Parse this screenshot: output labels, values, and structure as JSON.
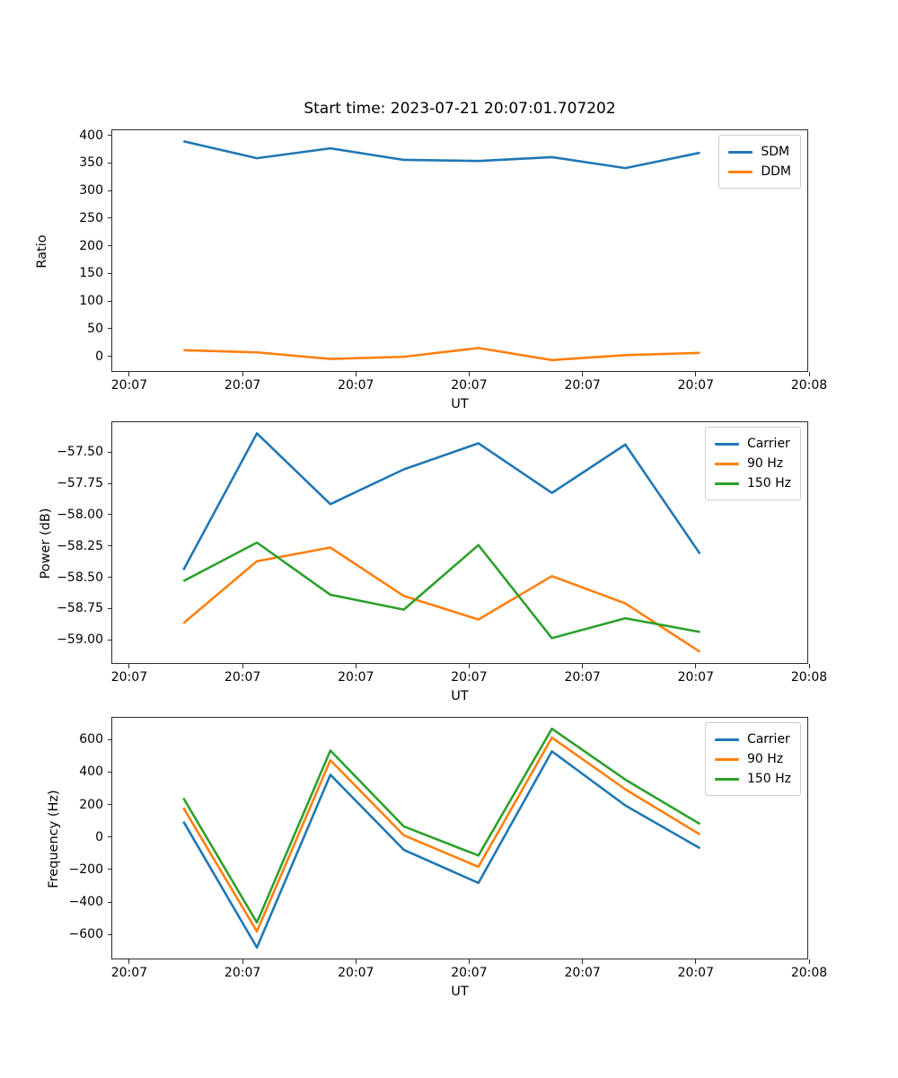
{
  "figure": {
    "title": "Start time: 2023-07-21 20:07:01.707202",
    "background": "#ffffff"
  },
  "colors": {
    "blue": "#1f77b4",
    "orange": "#ff7f0e",
    "green": "#2ca02c"
  },
  "x_axis": {
    "label": "UT",
    "xlim_seconds_after_2007": [
      -1.5,
      60
    ],
    "data_seconds_after_2007": [
      4.8,
      11.3,
      17.8,
      24.3,
      30.9,
      37.4,
      43.9,
      50.5
    ],
    "ticks": [
      {
        "v": 0,
        "label": "20:07"
      },
      {
        "v": 10,
        "label": "20:07"
      },
      {
        "v": 20,
        "label": "20:07"
      },
      {
        "v": 30,
        "label": "20:07"
      },
      {
        "v": 40,
        "label": "20:07"
      },
      {
        "v": 50,
        "label": "20:07"
      },
      {
        "v": 60,
        "label": "20:08"
      }
    ]
  },
  "chart_data": [
    {
      "type": "line",
      "title": "Start time: 2023-07-21 20:07:01.707202",
      "xlabel": "UT",
      "ylabel": "Ratio",
      "ylim": [
        -30,
        409
      ],
      "grid": false,
      "legend_position": "upper right",
      "yticks": [
        {
          "v": 0,
          "label": "0"
        },
        {
          "v": 50,
          "label": "50"
        },
        {
          "v": 100,
          "label": "100"
        },
        {
          "v": 150,
          "label": "150"
        },
        {
          "v": 200,
          "label": "200"
        },
        {
          "v": 250,
          "label": "250"
        },
        {
          "v": 300,
          "label": "300"
        },
        {
          "v": 350,
          "label": "350"
        },
        {
          "v": 400,
          "label": "400"
        }
      ],
      "series": [
        {
          "name": "SDM",
          "color": "#1f77b4",
          "values": [
            389,
            358,
            376,
            355,
            353,
            360,
            340,
            368
          ]
        },
        {
          "name": "DDM",
          "color": "#ff7f0e",
          "values": [
            8,
            4,
            -8,
            -4,
            12,
            -10,
            -1,
            3
          ]
        }
      ]
    },
    {
      "type": "line",
      "title": "",
      "xlabel": "UT",
      "ylabel": "Power (dB)",
      "ylim": [
        -59.2,
        -57.26
      ],
      "grid": false,
      "legend_position": "upper right",
      "yticks": [
        {
          "v": -57.5,
          "label": "−57.50"
        },
        {
          "v": -57.75,
          "label": "−57.75"
        },
        {
          "v": -58.0,
          "label": "−58.00"
        },
        {
          "v": -58.25,
          "label": "−58.25"
        },
        {
          "v": -58.5,
          "label": "−58.50"
        },
        {
          "v": -58.75,
          "label": "−58.75"
        },
        {
          "v": -59.0,
          "label": "−59.00"
        }
      ],
      "series": [
        {
          "name": "Carrier",
          "color": "#1f77b4",
          "values": [
            -58.45,
            -57.35,
            -57.92,
            -57.64,
            -57.43,
            -57.83,
            -57.44,
            -58.32
          ]
        },
        {
          "name": "90 Hz",
          "color": "#ff7f0e",
          "values": [
            -58.88,
            -58.38,
            -58.27,
            -58.66,
            -58.85,
            -58.5,
            -58.72,
            -59.11
          ]
        },
        {
          "name": "150 Hz",
          "color": "#2ca02c",
          "values": [
            -58.54,
            -58.23,
            -58.65,
            -58.77,
            -58.25,
            -59.0,
            -58.84,
            -58.95
          ]
        }
      ]
    },
    {
      "type": "line",
      "title": "",
      "xlabel": "UT",
      "ylabel": "Frequency (Hz)",
      "ylim": [
        -758,
        733
      ],
      "grid": false,
      "legend_position": "upper right",
      "yticks": [
        {
          "v": 600,
          "label": "600"
        },
        {
          "v": 400,
          "label": "400"
        },
        {
          "v": 200,
          "label": "200"
        },
        {
          "v": 0,
          "label": "0"
        },
        {
          "v": -200,
          "label": "−200"
        },
        {
          "v": -400,
          "label": "−400"
        },
        {
          "v": -600,
          "label": "−600"
        }
      ],
      "series": [
        {
          "name": "Carrier",
          "color": "#1f77b4",
          "values": [
            90,
            -690,
            380,
            -85,
            -290,
            525,
            190,
            -75
          ]
        },
        {
          "name": "90 Hz",
          "color": "#ff7f0e",
          "values": [
            175,
            -590,
            470,
            5,
            -190,
            610,
            290,
            10
          ]
        },
        {
          "name": "150 Hz",
          "color": "#2ca02c",
          "values": [
            235,
            -535,
            530,
            60,
            -120,
            665,
            350,
            75
          ]
        }
      ]
    }
  ]
}
